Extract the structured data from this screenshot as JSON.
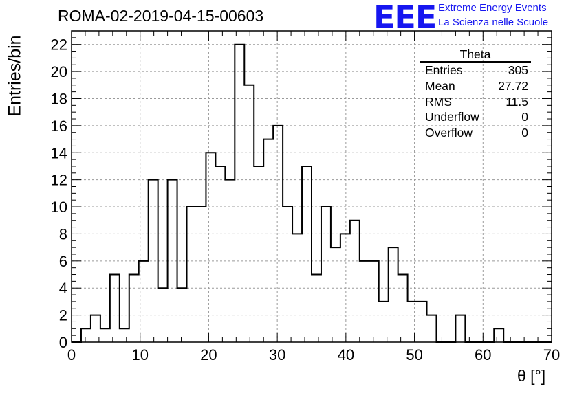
{
  "title": "ROMA-02-2019-04-15-00603",
  "logo": {
    "letters": "EEE",
    "line1": "Extreme Energy Events",
    "line2": "La Scienza nelle Scuole",
    "color": "#1616f0"
  },
  "stats": {
    "title": "Theta",
    "rows": [
      {
        "label": "Entries",
        "value": "305"
      },
      {
        "label": "Mean",
        "value": "27.72"
      },
      {
        "label": "RMS",
        "value": "11.5"
      },
      {
        "label": "Underflow",
        "value": "0"
      },
      {
        "label": "Overflow",
        "value": "0"
      }
    ]
  },
  "chart_data": {
    "type": "bar",
    "title": "ROMA-02-2019-04-15-00603",
    "xlabel": "θ [°]",
    "ylabel": "Entries/bin",
    "xlim": [
      0,
      70
    ],
    "ylim": [
      0,
      23
    ],
    "grid": true,
    "bin_width": 1.4,
    "x_ticks": [
      0,
      10,
      20,
      30,
      40,
      50,
      60,
      70
    ],
    "y_ticks": [
      0,
      2,
      4,
      6,
      8,
      10,
      12,
      14,
      16,
      18,
      20,
      22
    ],
    "bin_low_edges": [
      0,
      1.4,
      2.8,
      4.2,
      5.6,
      7.0,
      8.4,
      9.8,
      11.2,
      12.6,
      14.0,
      15.4,
      16.8,
      18.2,
      19.6,
      21.0,
      22.4,
      23.8,
      25.2,
      26.6,
      28.0,
      29.4,
      30.8,
      32.2,
      33.6,
      35.0,
      36.4,
      37.8,
      39.2,
      40.6,
      42.0,
      43.4,
      44.8,
      46.2,
      47.6,
      49.0,
      50.4,
      51.8,
      53.2,
      54.6,
      56.0,
      57.4,
      58.8,
      60.2,
      61.6,
      63.0,
      64.4,
      65.8,
      67.2,
      68.6
    ],
    "values": [
      0,
      1,
      2,
      1,
      5,
      1,
      5,
      6,
      12,
      4,
      12,
      4,
      10,
      10,
      14,
      13,
      12,
      22,
      19,
      13,
      15,
      16,
      10,
      8,
      13,
      5,
      10,
      7,
      8,
      9,
      6,
      6,
      3,
      7,
      5,
      3,
      3,
      2,
      0,
      0,
      2,
      0,
      0,
      0,
      1,
      0,
      0,
      0,
      0,
      0
    ]
  }
}
